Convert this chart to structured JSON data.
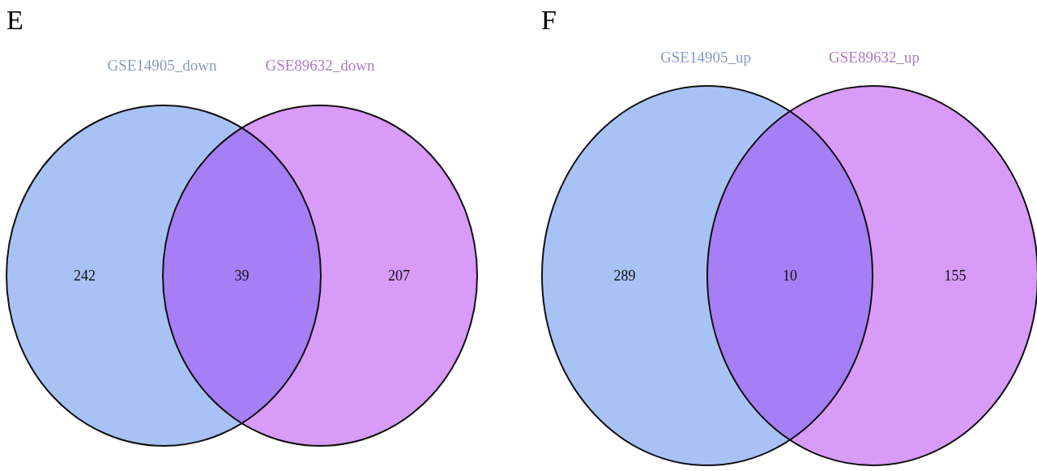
{
  "chart_data": [
    {
      "type": "other",
      "title": "E",
      "categories": [
        "GSE14905_down",
        null,
        "GSE89632_down"
      ],
      "values": [
        242,
        39,
        207
      ],
      "colors": [
        "#a9c2f6",
        "#a67ef6",
        "#d89bf8"
      ],
      "data_labels": true
    },
    {
      "type": "other",
      "title": "F",
      "categories": [
        "GSE14905_up",
        null,
        "GSE89632_up"
      ],
      "values": [
        289,
        10,
        155
      ],
      "colors": [
        "#a9c2f6",
        "#a67ef6",
        "#d89bf8"
      ],
      "data_labels": true
    }
  ]
}
